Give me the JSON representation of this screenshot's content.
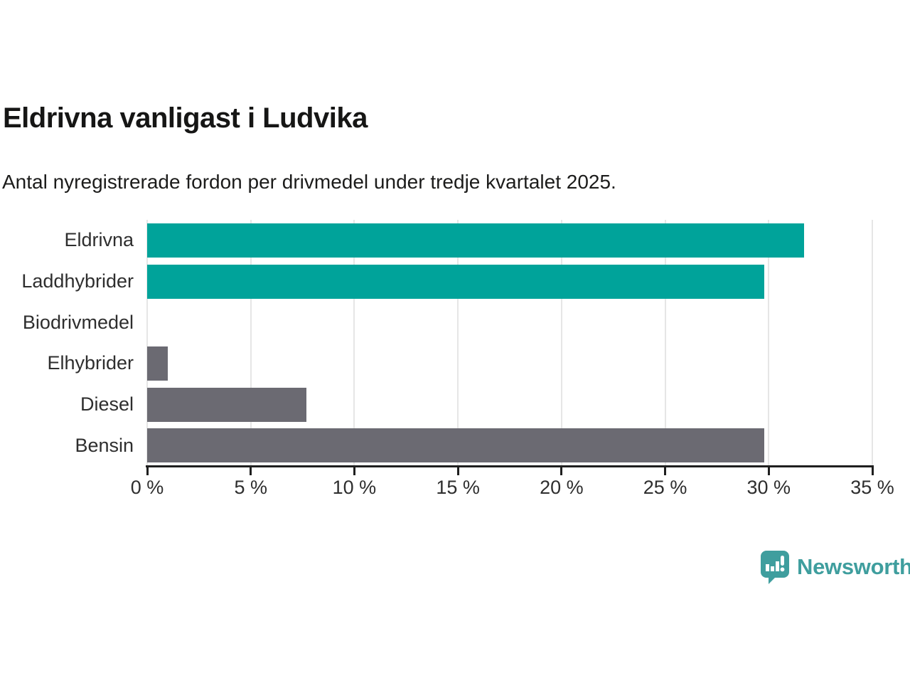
{
  "chart_data": {
    "type": "bar",
    "orientation": "horizontal",
    "title": "Eldrivna vanligast i Ludvika",
    "subtitle": "Antal nyregistrerade fordon per drivmedel under tredje kvartalet 2025.",
    "categories": [
      "Eldrivna",
      "Laddhybrider",
      "Biodrivmedel",
      "Elhybrider",
      "Diesel",
      "Bensin"
    ],
    "values": [
      31.7,
      29.8,
      0,
      1.0,
      7.7,
      29.8
    ],
    "value_unit": "%",
    "xlim": [
      0,
      35
    ],
    "x_tick_values": [
      0,
      5,
      10,
      15,
      20,
      25,
      30,
      35
    ],
    "x_ticks": [
      "0 %",
      "5 %",
      "10 %",
      "15 %",
      "20 %",
      "25 %",
      "30 %",
      "35 %"
    ],
    "bar_colors": [
      "#00a39a",
      "#00a39a",
      "#6b6a72",
      "#6b6a72",
      "#6b6a72",
      "#6b6a72"
    ],
    "colors": {
      "highlight": "#00a39a",
      "default": "#6b6a72",
      "gridline": "#e6e6e6",
      "axis": "#1f1f1f",
      "label": "#2e2e2e"
    },
    "grid": true,
    "legend": "none"
  },
  "footer": {
    "brand_label": "Newsworthy",
    "brand_color": "#3f9e9e",
    "logo_icon": "newsworthy-speech-bubble-chart-icon"
  }
}
